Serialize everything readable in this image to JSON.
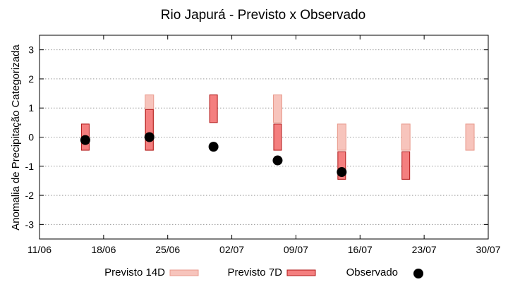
{
  "chart_data": {
    "type": "range_bar_scatter",
    "title": "Rio Japurá - Previsto x Observado",
    "xlabel": "",
    "ylabel": "Anomalia de Precipitação Categorizada",
    "xlim": [
      "2023-06-11",
      "2023-07-30"
    ],
    "ylim": [
      -3.5,
      3.5
    ],
    "x_ticks": [
      "11/06",
      "18/06",
      "25/06",
      "02/07",
      "09/07",
      "16/07",
      "23/07",
      "30/07"
    ],
    "y_ticks": [
      -3,
      -2,
      -1,
      0,
      1,
      2,
      3
    ],
    "grid": "horizontal dotted",
    "legend_position": "bottom",
    "series": [
      {
        "name": "Previsto 14D",
        "kind": "range",
        "color": "#f7c4bc",
        "stroke": "#e89a8c",
        "points": [
          {
            "date": "2023-06-23",
            "low": -0.45,
            "high": 1.45
          },
          {
            "date": "2023-07-07",
            "low": 0.5,
            "high": 1.45
          },
          {
            "date": "2023-07-14",
            "low": -0.45,
            "high": 0.45
          },
          {
            "date": "2023-07-21",
            "low": -0.45,
            "high": 0.45
          },
          {
            "date": "2023-07-28",
            "low": -0.45,
            "high": 0.45
          }
        ]
      },
      {
        "name": "Previsto 7D",
        "kind": "range",
        "color": "#f47f7f",
        "stroke": "#b01818",
        "points": [
          {
            "date": "2023-06-16",
            "low": -0.45,
            "high": 0.45
          },
          {
            "date": "2023-06-23",
            "low": -0.45,
            "high": 0.95
          },
          {
            "date": "2023-06-30",
            "low": 0.5,
            "high": 1.45
          },
          {
            "date": "2023-07-07",
            "low": -0.45,
            "high": 0.45
          },
          {
            "date": "2023-07-14",
            "low": -1.45,
            "high": -0.5
          },
          {
            "date": "2023-07-21",
            "low": -1.45,
            "high": -0.5
          }
        ]
      },
      {
        "name": "Observado",
        "kind": "point",
        "color": "#000000",
        "points": [
          {
            "date": "2023-06-16",
            "value": -0.1
          },
          {
            "date": "2023-06-23",
            "value": 0.0
          },
          {
            "date": "2023-06-30",
            "value": -0.33
          },
          {
            "date": "2023-07-07",
            "value": -0.8
          },
          {
            "date": "2023-07-14",
            "value": -1.2
          }
        ]
      }
    ]
  }
}
